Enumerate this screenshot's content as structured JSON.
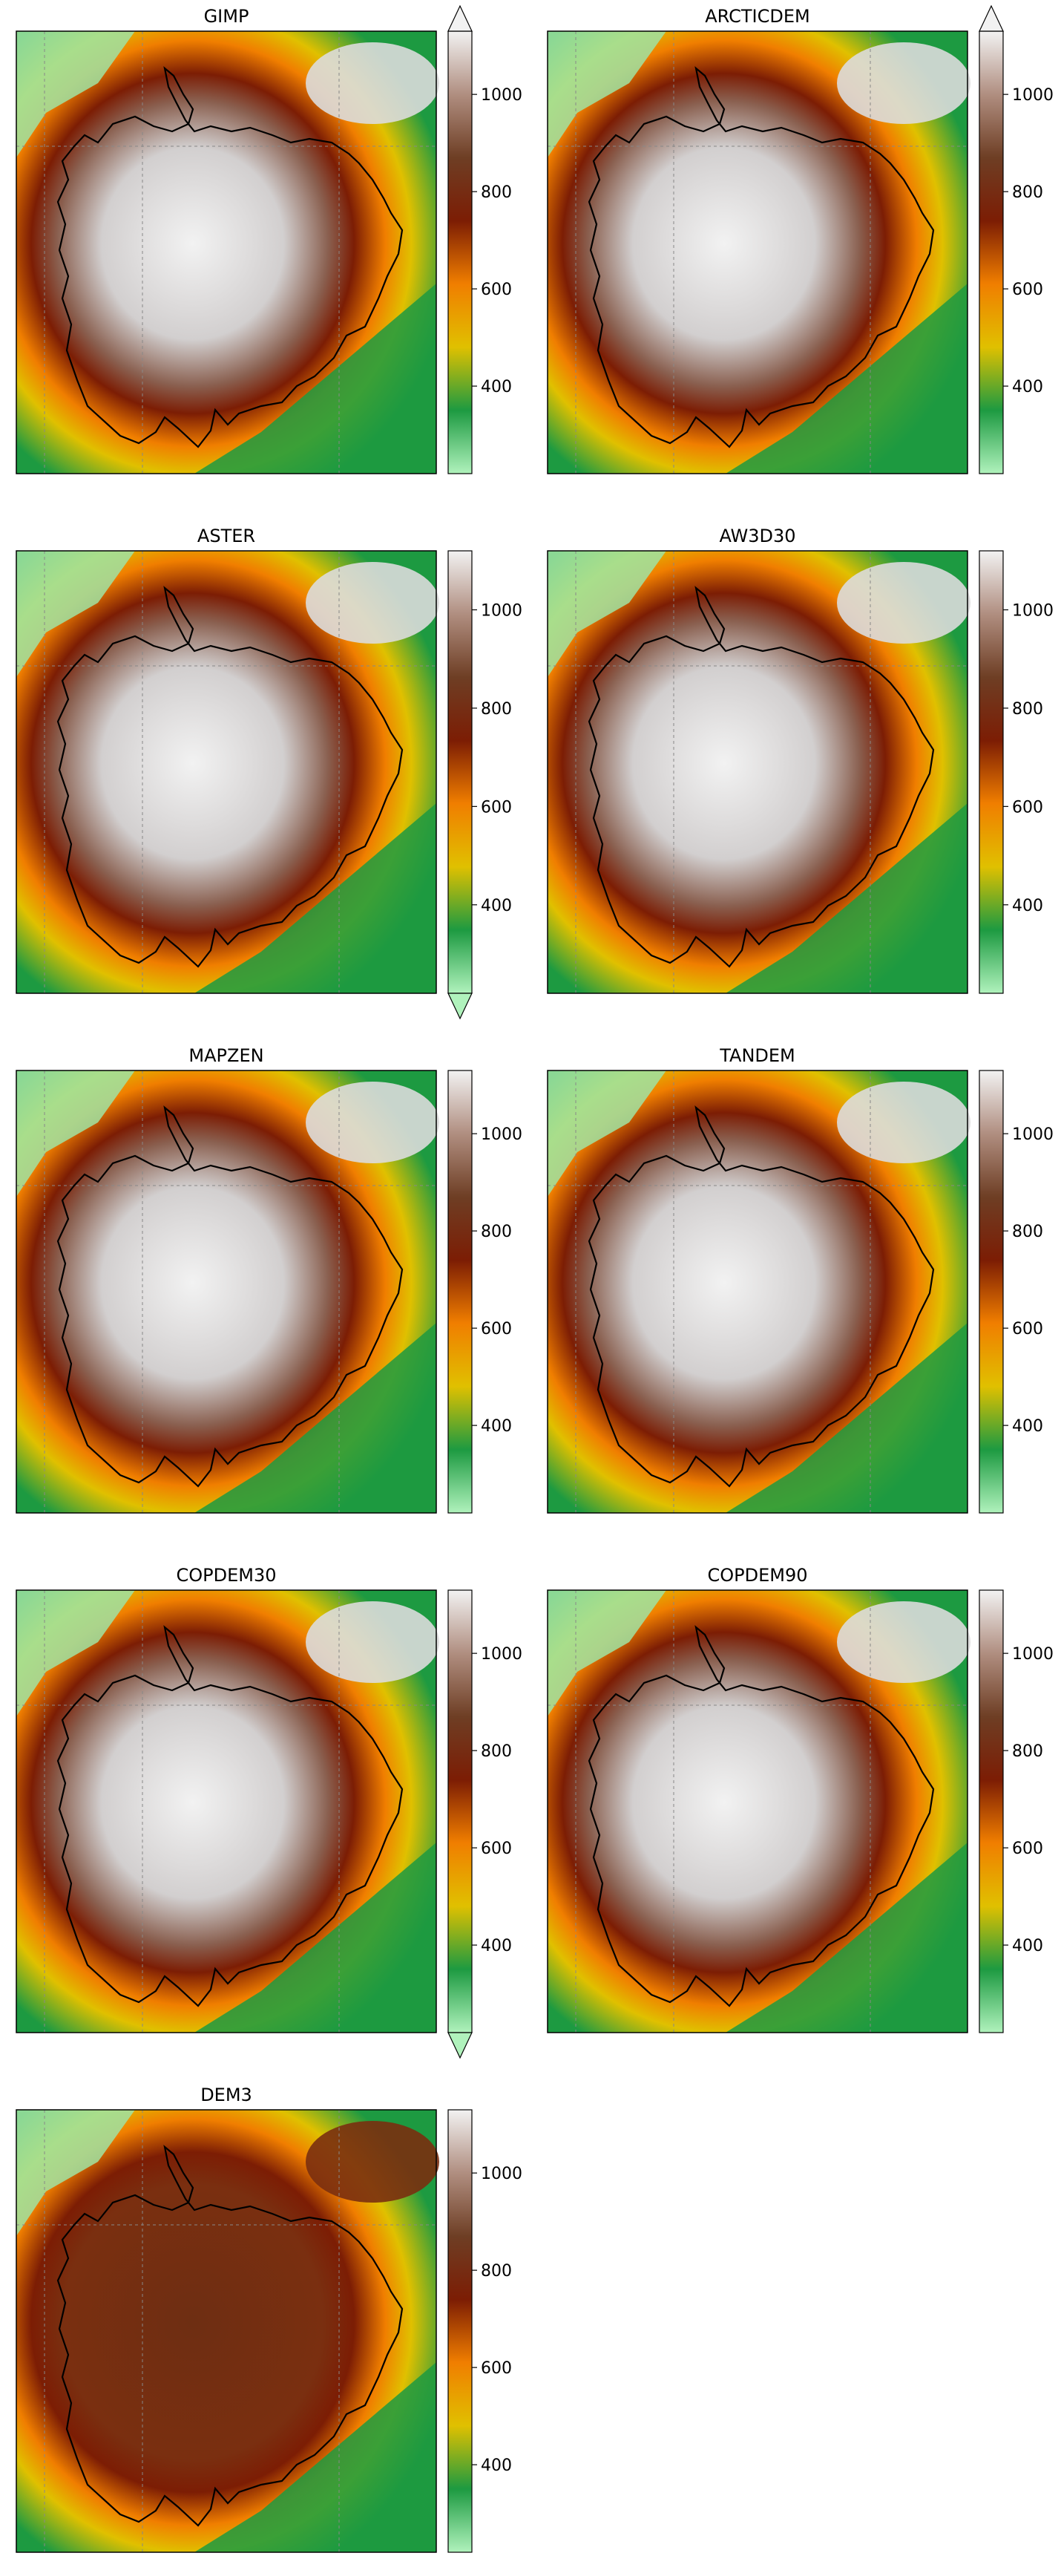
{
  "figure": {
    "panels": [
      {
        "title": "GIMP",
        "ticks": [
          "400",
          "600",
          "800",
          "1000"
        ],
        "tick_values": [
          400,
          600,
          800,
          1000
        ],
        "range": [
          220,
          1130
        ],
        "extend_max": true,
        "extend_min": false
      },
      {
        "title": "ARCTICDEM",
        "ticks": [
          "400",
          "600",
          "800",
          "1000"
        ],
        "tick_values": [
          400,
          600,
          800,
          1000
        ],
        "range": [
          220,
          1130
        ],
        "extend_max": true,
        "extend_min": false
      },
      {
        "title": "ASTER",
        "ticks": [
          "400",
          "600",
          "800",
          "1000"
        ],
        "tick_values": [
          400,
          600,
          800,
          1000
        ],
        "range": [
          220,
          1120
        ],
        "extend_max": false,
        "extend_min": true
      },
      {
        "title": "AW3D30",
        "ticks": [
          "400",
          "600",
          "800",
          "1000"
        ],
        "tick_values": [
          400,
          600,
          800,
          1000
        ],
        "range": [
          220,
          1120
        ],
        "extend_max": false,
        "extend_min": false
      },
      {
        "title": "MAPZEN",
        "ticks": [
          "400",
          "600",
          "800",
          "1000"
        ],
        "tick_values": [
          400,
          600,
          800,
          1000
        ],
        "range": [
          220,
          1130
        ],
        "extend_max": false,
        "extend_min": false
      },
      {
        "title": "TANDEM",
        "ticks": [
          "400",
          "600",
          "800",
          "1000"
        ],
        "tick_values": [
          400,
          600,
          800,
          1000
        ],
        "range": [
          220,
          1130
        ],
        "extend_max": false,
        "extend_min": false
      },
      {
        "title": "COPDEM30",
        "ticks": [
          "400",
          "600",
          "800",
          "1000"
        ],
        "tick_values": [
          400,
          600,
          800,
          1000
        ],
        "range": [
          220,
          1130
        ],
        "extend_max": false,
        "extend_min": true
      },
      {
        "title": "COPDEM90",
        "ticks": [
          "400",
          "600",
          "800",
          "1000"
        ],
        "tick_values": [
          400,
          600,
          800,
          1000
        ],
        "range": [
          220,
          1130
        ],
        "extend_max": false,
        "extend_min": false
      },
      {
        "title": "DEM3",
        "ticks": [
          "400",
          "600",
          "800",
          "1000"
        ],
        "tick_values": [
          400,
          600,
          800,
          1000
        ],
        "range": [
          220,
          1130
        ],
        "extend_max": false,
        "extend_min": false
      }
    ],
    "colormap": [
      "#b0f2bc",
      "#1d9a41",
      "#e0c000",
      "#f07e00",
      "#7c1d04",
      "#6e3e24",
      "#b08e80",
      "#f2f2f2"
    ],
    "outline_color": "#000000",
    "grid_color": "#888888"
  }
}
